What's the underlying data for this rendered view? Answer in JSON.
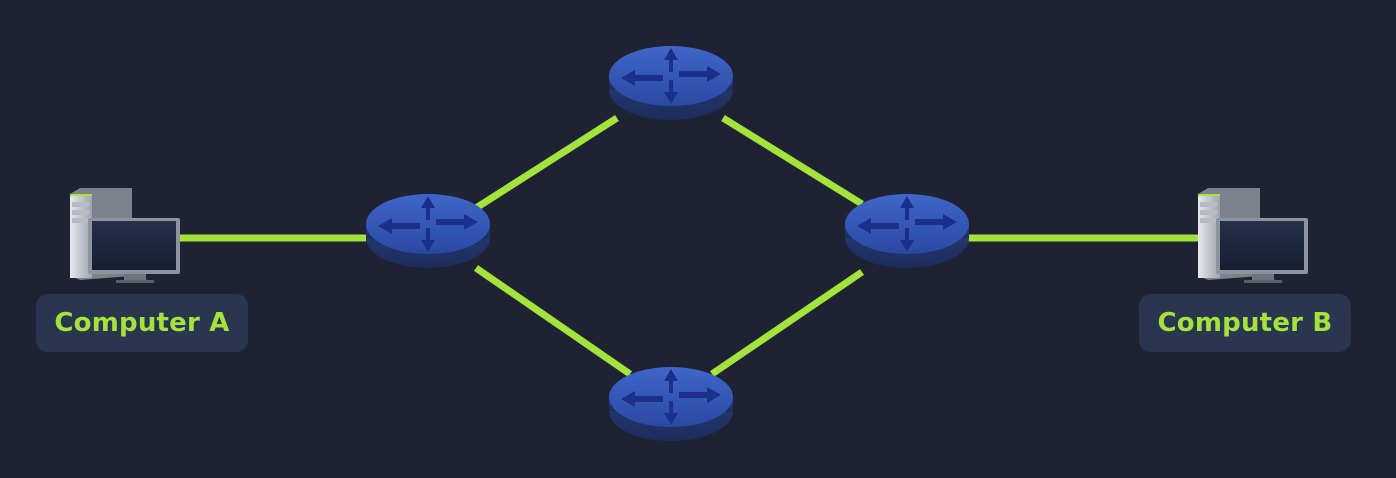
{
  "colors": {
    "background": "#1e2233",
    "link": "#a4e23c",
    "label_background": "#2a3550",
    "label_text": "#a4e23c",
    "router_top": "#3357b7",
    "router_side": "#24366f",
    "router_arrow": "#1b2d85"
  },
  "nodes": {
    "computer_a": {
      "label": "Computer A",
      "icon": "desktop-computer-icon"
    },
    "computer_b": {
      "label": "Computer B",
      "icon": "desktop-computer-icon"
    },
    "routers": [
      {
        "id": "router-left",
        "icon": "router-icon"
      },
      {
        "id": "router-top",
        "icon": "router-icon"
      },
      {
        "id": "router-bottom",
        "icon": "router-icon"
      },
      {
        "id": "router-right",
        "icon": "router-icon"
      }
    ]
  },
  "links": [
    {
      "from": "computer_a",
      "to": "router-left"
    },
    {
      "from": "router-left",
      "to": "router-top"
    },
    {
      "from": "router-left",
      "to": "router-bottom"
    },
    {
      "from": "router-top",
      "to": "router-right"
    },
    {
      "from": "router-bottom",
      "to": "router-right"
    },
    {
      "from": "router-right",
      "to": "computer_b"
    }
  ]
}
